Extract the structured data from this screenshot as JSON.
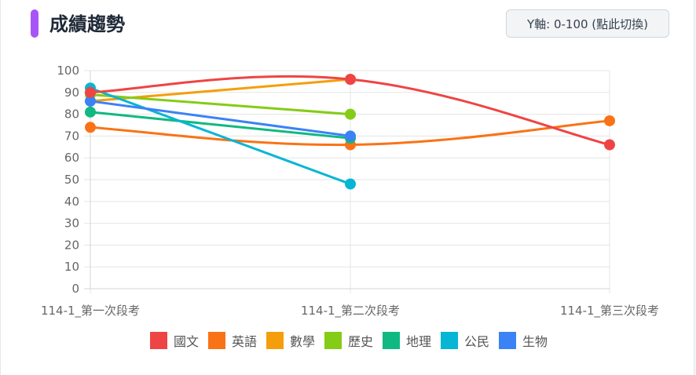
{
  "header": {
    "title": "成績趨勢",
    "toggle_label": "Y軸: 0-100 (點此切換)"
  },
  "chart_data": {
    "type": "line",
    "title": "",
    "xlabel": "",
    "ylabel": "",
    "categories": [
      "114-1_第一次段考",
      "114-1_第二次段考",
      "114-1_第三次段考"
    ],
    "ylim": [
      0,
      100
    ],
    "yticks": [
      0,
      10,
      20,
      30,
      40,
      50,
      60,
      70,
      80,
      90,
      100
    ],
    "grid": true,
    "legend_position": "bottom",
    "series": [
      {
        "name": "國文",
        "color": "#ef4444",
        "values": [
          90,
          96,
          66
        ]
      },
      {
        "name": "英語",
        "color": "#f97316",
        "values": [
          74,
          66,
          77
        ]
      },
      {
        "name": "數學",
        "color": "#f59e0b",
        "values": [
          86,
          96,
          null
        ]
      },
      {
        "name": "歷史",
        "color": "#84cc16",
        "values": [
          89,
          80,
          null
        ]
      },
      {
        "name": "地理",
        "color": "#10b981",
        "values": [
          81,
          69,
          null
        ]
      },
      {
        "name": "公民",
        "color": "#06b6d4",
        "values": [
          92,
          48,
          null
        ]
      },
      {
        "name": "生物",
        "color": "#3b82f6",
        "values": [
          86,
          70,
          null
        ]
      }
    ]
  }
}
